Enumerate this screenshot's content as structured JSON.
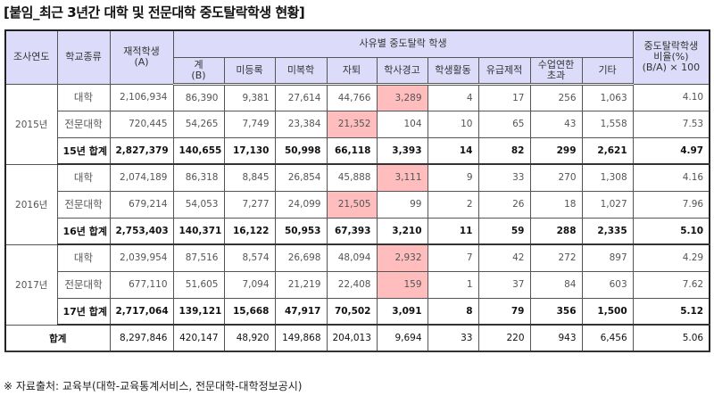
{
  "title": "[붙임_최근 3년간 대학 및 전문대학 중도탈락학생 현황]",
  "colors": {
    "header_bg": "#dcdcfa",
    "highlight": "#ffbdbd"
  },
  "header": {
    "year": "조사연도",
    "school_type": "학교종류",
    "enrolled": "재적학생\n(A)",
    "reason_group": "사유별 중도탈락 학생",
    "ratio": "중도탈락학생\n비율(%)\n(B/A) × 100",
    "reasons": [
      "계\n(B)",
      "미등록",
      "미복학",
      "자퇴",
      "학사경고",
      "학생활동",
      "유급제적",
      "수업연한\n초과",
      "기타"
    ]
  },
  "years": [
    {
      "year": "2015년",
      "rows": [
        {
          "kind": "대학",
          "values": [
            "2,106,934",
            "86,390",
            "9,381",
            "27,614",
            "44,766",
            "3,289",
            "4",
            "17",
            "256",
            "1,063",
            "4.10"
          ],
          "highlight": [
            4
          ]
        },
        {
          "kind": "전문대학",
          "values": [
            "720,445",
            "54,265",
            "7,749",
            "23,384",
            "21,352",
            "104",
            "10",
            "65",
            "43",
            "1,558",
            "7.53"
          ],
          "highlight": [
            3
          ]
        },
        {
          "kind": "15년 합계",
          "values": [
            "2,827,379",
            "140,655",
            "17,130",
            "50,998",
            "66,118",
            "3,393",
            "14",
            "82",
            "299",
            "2,621",
            "4.97"
          ],
          "highlight": []
        }
      ]
    },
    {
      "year": "2016년",
      "rows": [
        {
          "kind": "대학",
          "values": [
            "2,074,189",
            "86,318",
            "8,845",
            "26,854",
            "45,888",
            "3,111",
            "9",
            "33",
            "270",
            "1,308",
            "4.16"
          ],
          "highlight": [
            4
          ]
        },
        {
          "kind": "전문대학",
          "values": [
            "679,214",
            "54,053",
            "7,277",
            "24,099",
            "21,505",
            "99",
            "2",
            "26",
            "18",
            "1,027",
            "7.96"
          ],
          "highlight": [
            3
          ]
        },
        {
          "kind": "16년 합계",
          "values": [
            "2,753,403",
            "140,371",
            "16,122",
            "50,953",
            "67,393",
            "3,210",
            "11",
            "59",
            "288",
            "2,335",
            "5.10"
          ],
          "highlight": []
        }
      ]
    },
    {
      "year": "2017년",
      "rows": [
        {
          "kind": "대학",
          "values": [
            "2,039,954",
            "87,516",
            "8,574",
            "26,698",
            "48,094",
            "2,932",
            "7",
            "42",
            "272",
            "897",
            "4.29"
          ],
          "highlight": [
            4
          ]
        },
        {
          "kind": "전문대학",
          "values": [
            "677,110",
            "51,605",
            "7,094",
            "21,219",
            "22,408",
            "159",
            "1",
            "37",
            "84",
            "603",
            "7.62"
          ],
          "highlight": [
            4
          ]
        },
        {
          "kind": "17년 합계",
          "values": [
            "2,717,064",
            "139,121",
            "15,668",
            "47,917",
            "70,502",
            "3,091",
            "8",
            "79",
            "356",
            "1,500",
            "5.12"
          ],
          "highlight": []
        }
      ]
    }
  ],
  "total": {
    "label": "합계",
    "values": [
      "8,297,846",
      "420,147",
      "48,920",
      "149,868",
      "204,013",
      "9,694",
      "33",
      "220",
      "943",
      "6,456",
      "5.06"
    ]
  },
  "source": "※ 자료출처: 교육부(대학-교육통계서비스, 전문대학-대학정보공시)"
}
